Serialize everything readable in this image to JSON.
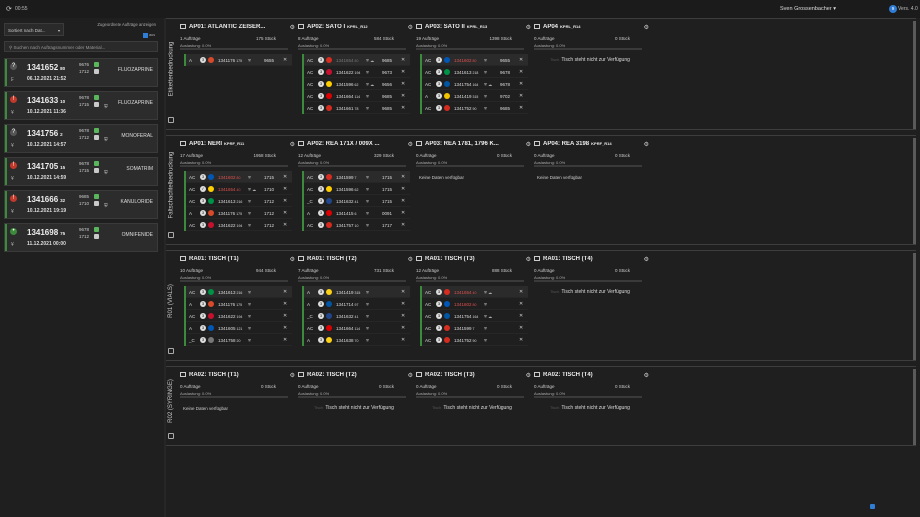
{
  "topbar": {
    "refresh_icon": "refresh-icon",
    "clock": "00:55",
    "user": "Sven Grossenbacher ▾",
    "badge": "9",
    "version": "Vers. 4.0"
  },
  "left": {
    "sort": "Sortiert nach Dat...",
    "show_done": "Zugeordnete Aufträge anzeigen",
    "toggle_label": "aus",
    "search_placeholder": "Suchen nach Auftragsnummer oder Material...",
    "orders": [
      {
        "status": "?",
        "color": "#555",
        "num": "1341652",
        "count": "80",
        "currency": "₣",
        "date": "06.12.2021 21:52",
        "l1": "9676",
        "l2": "1712",
        "l3": "",
        "subst": "FLUOZAPRINE",
        "bar": "#3c8a3c"
      },
      {
        "status": "!",
        "color": "#c0392b",
        "num": "1341633",
        "count": "10",
        "currency": "¥",
        "date": "10.12.2021 11:36",
        "l1": "9678",
        "l2": "1715",
        "l3": "",
        "subst": "FLUOZAPRINE",
        "bar": "#3c8a3c"
      },
      {
        "status": "?",
        "color": "#555",
        "num": "1341756",
        "count": "2",
        "currency": "¥",
        "date": "10.12.2021 14:57",
        "l1": "9678",
        "l2": "1712",
        "l3": "",
        "subst": "MONOFERAL",
        "bar": "#3c8a3c"
      },
      {
        "status": "!",
        "color": "#c0392b",
        "num": "1341705",
        "count": "15",
        "currency": "¥",
        "date": "10.12.2021 14:59",
        "l1": "9678",
        "l2": "1715",
        "l3": "",
        "subst": "SOMATRIM",
        "bar": "#3c8a3c"
      },
      {
        "status": "!",
        "color": "#c0392b",
        "num": "1341666",
        "count": "32",
        "currency": "¥",
        "date": "10.12.2021 19:19",
        "l1": "9685",
        "l2": "1710",
        "l3": "",
        "subst": "KANULORIDE",
        "bar": "#3c8a3c"
      },
      {
        "status": "•",
        "color": "#3c8a3c",
        "num": "1341698",
        "count": "75",
        "currency": "¥",
        "date": "11.12.2021 00:00",
        "l1": "9678",
        "l2": "1712",
        "l3": "",
        "subst": "OMNIFENIDE",
        "bar": "#3c8a3c"
      }
    ]
  },
  "sections": [
    {
      "label": "Etikettenbedruckung",
      "stations": [
        {
          "title": "AP01: ATLANTIC ZEISER...",
          "sub": "",
          "orders": "1 Aufträge",
          "pieces": "175 Stück",
          "util": "Auslastung: 0.0%",
          "rows": [
            {
              "t": "A",
              "d": "3",
              "flag": "#d84a2a",
              "id": "1341176",
              "small": "175",
              "sh": "⛨",
              "v": "9655",
              "cls": ""
            }
          ]
        },
        {
          "title": "AP02: SATO I",
          "sub": "KPRL_R12",
          "orders": "8 Aufträge",
          "pieces": "584 Stück",
          "util": "Auslastung: 0.0%",
          "rows": [
            {
              "t": "AC",
              "d": "3",
              "flag": "#d62d20",
              "id": "1341654",
              "small": "80",
              "sh": "⛨ ☁",
              "v": "9685",
              "cls": "dim"
            },
            {
              "t": "AC",
              "d": "3",
              "flag": "#c8102e",
              "id": "1341622",
              "small": "194",
              "sh": "⛨",
              "v": "9673",
              "cls": ""
            },
            {
              "t": "AC",
              "d": "3",
              "flag": "#ffce00",
              "id": "1341596",
              "small": "62",
              "sh": "⛨ ☁",
              "v": "9656",
              "cls": ""
            },
            {
              "t": "AC",
              "d": "3",
              "flag": "#dd0000",
              "id": "1341664",
              "small": "114",
              "sh": "⛨",
              "v": "9685",
              "cls": ""
            },
            {
              "t": "AC",
              "d": "3",
              "flag": "#d52b1e",
              "id": "1341661",
              "small": "78",
              "sh": "⛨",
              "v": "9685",
              "cls": ""
            }
          ]
        },
        {
          "title": "AP03: SATO II",
          "sub": "KPRL_R13",
          "orders": "19 Aufträge",
          "pieces": "1398 Stück",
          "util": "Auslastung: 0.0%",
          "rows": [
            {
              "t": "AC",
              "d": "3",
              "flag": "#0057b7",
              "id": "1341602",
              "small": "80",
              "sh": "⛨",
              "v": "9655",
              "cls": "red"
            },
            {
              "t": "AC",
              "d": "3",
              "flag": "#009246",
              "id": "1341613",
              "small": "218",
              "sh": "⛨",
              "v": "9678",
              "cls": ""
            },
            {
              "t": "AC",
              "d": "3",
              "flag": "#0055a4",
              "id": "1341754",
              "small": "164",
              "sh": "⛨ ☁",
              "v": "9678",
              "cls": ""
            },
            {
              "t": "A",
              "d": "3",
              "flag": "#f4c300",
              "id": "1341419",
              "small": "315",
              "sh": "⛨",
              "v": "9702",
              "cls": ""
            },
            {
              "t": "AC",
              "d": "3",
              "flag": "#d52b1e",
              "id": "1341752",
              "small": "90",
              "sh": "⛨",
              "v": "9685",
              "cls": ""
            }
          ]
        },
        {
          "title": "AP04",
          "sub": "KPRL_R14",
          "orders": "0 Aufträge",
          "pieces": "0 Stück",
          "util": "Auslastung: 0.0%",
          "na": "Tisch steht nicht zur Verfügung",
          "rows": []
        }
      ]
    },
    {
      "label": "Faltschachtelbedruckung",
      "stations": [
        {
          "title": "AP01: NERI",
          "sub": "KPRF_R11",
          "orders": "17 Aufträge",
          "pieces": "1958 Stück",
          "util": "Auslastung: 0.0%",
          "rows": [
            {
              "t": "AC",
              "d": "3",
              "flag": "#0057b7",
              "id": "1341602",
              "small": "80",
              "sh": "⛨",
              "v": "1715",
              "cls": "red"
            },
            {
              "t": "AC",
              "d": "✓",
              "flag": "#ffce00",
              "id": "1341654",
              "small": "40",
              "sh": "⛨ ☁",
              "v": "1710",
              "cls": "red"
            },
            {
              "t": "AC",
              "d": "3",
              "flag": "#009246",
              "id": "1341613",
              "small": "216",
              "sh": "⛨",
              "v": "1712",
              "cls": ""
            },
            {
              "t": "A",
              "d": "3",
              "flag": "#d84a2a",
              "id": "1341176",
              "small": "175",
              "sh": "⛨",
              "v": "1712",
              "cls": ""
            },
            {
              "t": "AC",
              "d": "3",
              "flag": "#c8102e",
              "id": "1341622",
              "small": "194",
              "sh": "⛨",
              "v": "1712",
              "cls": ""
            }
          ]
        },
        {
          "title": "AP02: REA 171X / 009X ...",
          "sub": "",
          "orders": "12 Aufträge",
          "pieces": "329 Stück",
          "util": "Auslastung: 0.0%",
          "rows": [
            {
              "t": "AC",
              "d": "3",
              "flag": "#d62d20",
              "id": "1341599",
              "small": "7",
              "sh": "⛨",
              "v": "1715",
              "cls": ""
            },
            {
              "t": "AC",
              "d": "3",
              "flag": "#ffce00",
              "id": "1341596",
              "small": "62",
              "sh": "⛨",
              "v": "1715",
              "cls": ""
            },
            {
              "t": "_C",
              "d": "3",
              "flag": "#21468b",
              "id": "1341632",
              "small": "41",
              "sh": "⛨",
              "v": "1715",
              "cls": ""
            },
            {
              "t": "A",
              "d": "3",
              "flag": "#dd0000",
              "id": "1341415",
              "small": "6",
              "sh": "⛨",
              "v": "0091",
              "cls": ""
            },
            {
              "t": "AC",
              "d": "3",
              "flag": "#d52b1e",
              "id": "1341757",
              "small": "10",
              "sh": "⛨",
              "v": "1717",
              "cls": ""
            }
          ]
        },
        {
          "title": "AP03: REA 1781, 1796 K...",
          "sub": "",
          "orders": "0 Aufträge",
          "pieces": "0 Stück",
          "util": "Auslastung: 0.0%",
          "nodata": "Keine Daten verfügbar",
          "rows": []
        },
        {
          "title": "AP04: REA 3198",
          "sub": "KPRF_R14",
          "orders": "0 Aufträge",
          "pieces": "0 Stück",
          "util": "Auslastung: 0.0%",
          "nodata": "Keine Daten verfügbar",
          "rows": []
        }
      ]
    },
    {
      "label": "R01 (VIALS)",
      "stations": [
        {
          "title": "RA01: TISCH (T1)",
          "sub": "",
          "orders": "10 Aufträge",
          "pieces": "944 Stück",
          "util": "Auslastung: 0.0%",
          "rows": [
            {
              "t": "AC",
              "d": "3",
              "flag": "#009246",
              "id": "1341613",
              "small": "216",
              "sh": "⛨",
              "v": "",
              "cls": ""
            },
            {
              "t": "A",
              "d": "3",
              "flag": "#d84a2a",
              "id": "1341176",
              "small": "175",
              "sh": "⛨",
              "v": "",
              "cls": ""
            },
            {
              "t": "AC",
              "d": "3",
              "flag": "#c8102e",
              "id": "1341622",
              "small": "194",
              "sh": "⛨",
              "v": "",
              "cls": ""
            },
            {
              "t": "A",
              "d": "3",
              "flag": "#0057b7",
              "id": "1341605",
              "small": "121",
              "sh": "⛨",
              "v": "",
              "cls": ""
            },
            {
              "t": "_C",
              "d": "3",
              "flag": "#777",
              "id": "1341758",
              "small": "20",
              "sh": "⛨",
              "v": "",
              "cls": ""
            }
          ]
        },
        {
          "title": "RA01: TISCH (T2)",
          "sub": "",
          "orders": "7 Aufträge",
          "pieces": "731 Stück",
          "util": "Auslastung: 0.0%",
          "rows": [
            {
              "t": "A",
              "d": "3",
              "flag": "#fcd116",
              "id": "1341419",
              "small": "315",
              "sh": "⛨",
              "v": "",
              "cls": ""
            },
            {
              "t": "A",
              "d": "3",
              "flag": "#0055a4",
              "id": "1341714",
              "small": "97",
              "sh": "⛨",
              "v": "",
              "cls": ""
            },
            {
              "t": "_C",
              "d": "3",
              "flag": "#21468b",
              "id": "1341632",
              "small": "41",
              "sh": "⛨",
              "v": "",
              "cls": ""
            },
            {
              "t": "AC",
              "d": "3",
              "flag": "#dd0000",
              "id": "1341664",
              "small": "114",
              "sh": "⛨",
              "v": "",
              "cls": ""
            },
            {
              "t": "A",
              "d": "3",
              "flag": "#fcd116",
              "id": "1341638",
              "small": "70",
              "sh": "⛨",
              "v": "",
              "cls": ""
            }
          ]
        },
        {
          "title": "RA01: TISCH (T3)",
          "sub": "",
          "orders": "12 Aufträge",
          "pieces": "888 Stück",
          "util": "Auslastung: 0.0%",
          "rows": [
            {
              "t": "AC",
              "d": "3",
              "flag": "#d62d20",
              "id": "1341654",
              "small": "40",
              "sh": "⛨ ☁",
              "v": "",
              "cls": "red"
            },
            {
              "t": "AC",
              "d": "3",
              "flag": "#0057b7",
              "id": "1341602",
              "small": "80",
              "sh": "⛨",
              "v": "",
              "cls": "red"
            },
            {
              "t": "AC",
              "d": "3",
              "flag": "#0055a4",
              "id": "1341754",
              "small": "164",
              "sh": "⛨ ☁",
              "v": "",
              "cls": ""
            },
            {
              "t": "AC",
              "d": "3",
              "flag": "#d62d20",
              "id": "1341599",
              "small": "7",
              "sh": "⛨",
              "v": "",
              "cls": ""
            },
            {
              "t": "AC",
              "d": "3",
              "flag": "#d52b1e",
              "id": "1341752",
              "small": "90",
              "sh": "⛨",
              "v": "",
              "cls": ""
            }
          ]
        },
        {
          "title": "RA01: TISCH (T4)",
          "sub": "",
          "orders": "0 Aufträge",
          "pieces": "0 Stück",
          "util": "Auslastung: 0.0%",
          "na": "Tisch steht nicht zur Verfügung",
          "rows": []
        }
      ]
    },
    {
      "label": "R02 (SYRINGE)",
      "stations": [
        {
          "title": "RA02: TISCH (T1)",
          "sub": "",
          "orders": "0 Aufträge",
          "pieces": "0 Stück",
          "util": "Auslastung: 0.0%",
          "nodata": "Keine Daten verfügbar",
          "rows": []
        },
        {
          "title": "RA02: TISCH (T2)",
          "sub": "",
          "orders": "0 Aufträge",
          "pieces": "0 Stück",
          "util": "Auslastung: 0.0%",
          "na": "Tisch steht nicht zur Verfügung",
          "rows": []
        },
        {
          "title": "RA02: TISCH (T3)",
          "sub": "",
          "orders": "0 Aufträge",
          "pieces": "0 Stück",
          "util": "Auslastung: 0.0%",
          "na": "Tisch steht nicht zur Verfügung",
          "rows": []
        },
        {
          "title": "RA02: TISCH (T4)",
          "sub": "",
          "orders": "0 Aufträge",
          "pieces": "0 Stück",
          "util": "Auslastung: 0.0%",
          "na": "Tisch steht nicht zur Verfügung",
          "rows": []
        }
      ]
    }
  ]
}
